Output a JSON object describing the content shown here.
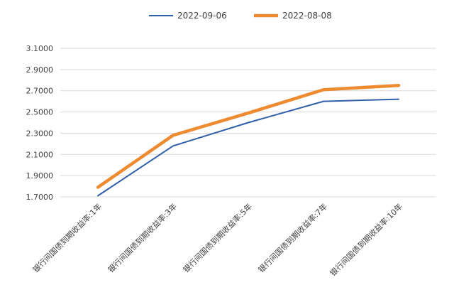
{
  "chart_data": {
    "type": "line",
    "categories": [
      "银行间国债到期收益率:1年",
      "银行间国债到期收益率:3年",
      "银行间国债到期收益率:5年",
      "银行间国债到期收益率:7年",
      "银行间国债到期收益率:10年"
    ],
    "series": [
      {
        "name": "2022-09-06",
        "values": [
          1.71,
          2.18,
          2.4,
          2.6,
          2.62
        ],
        "color": "#2e5fa8"
      },
      {
        "name": "2022-08-08",
        "values": [
          1.79,
          2.28,
          2.49,
          2.71,
          2.75
        ],
        "color": "#ee8a2f"
      }
    ],
    "ylim": [
      1.7,
      3.1
    ],
    "yticks": [
      "1.7000",
      "1.9000",
      "2.1000",
      "2.3000",
      "2.5000",
      "2.7000",
      "2.9000",
      "3.1000"
    ],
    "grid": true,
    "legend_position": "top-center",
    "title": "",
    "xlabel": "",
    "ylabel": ""
  }
}
